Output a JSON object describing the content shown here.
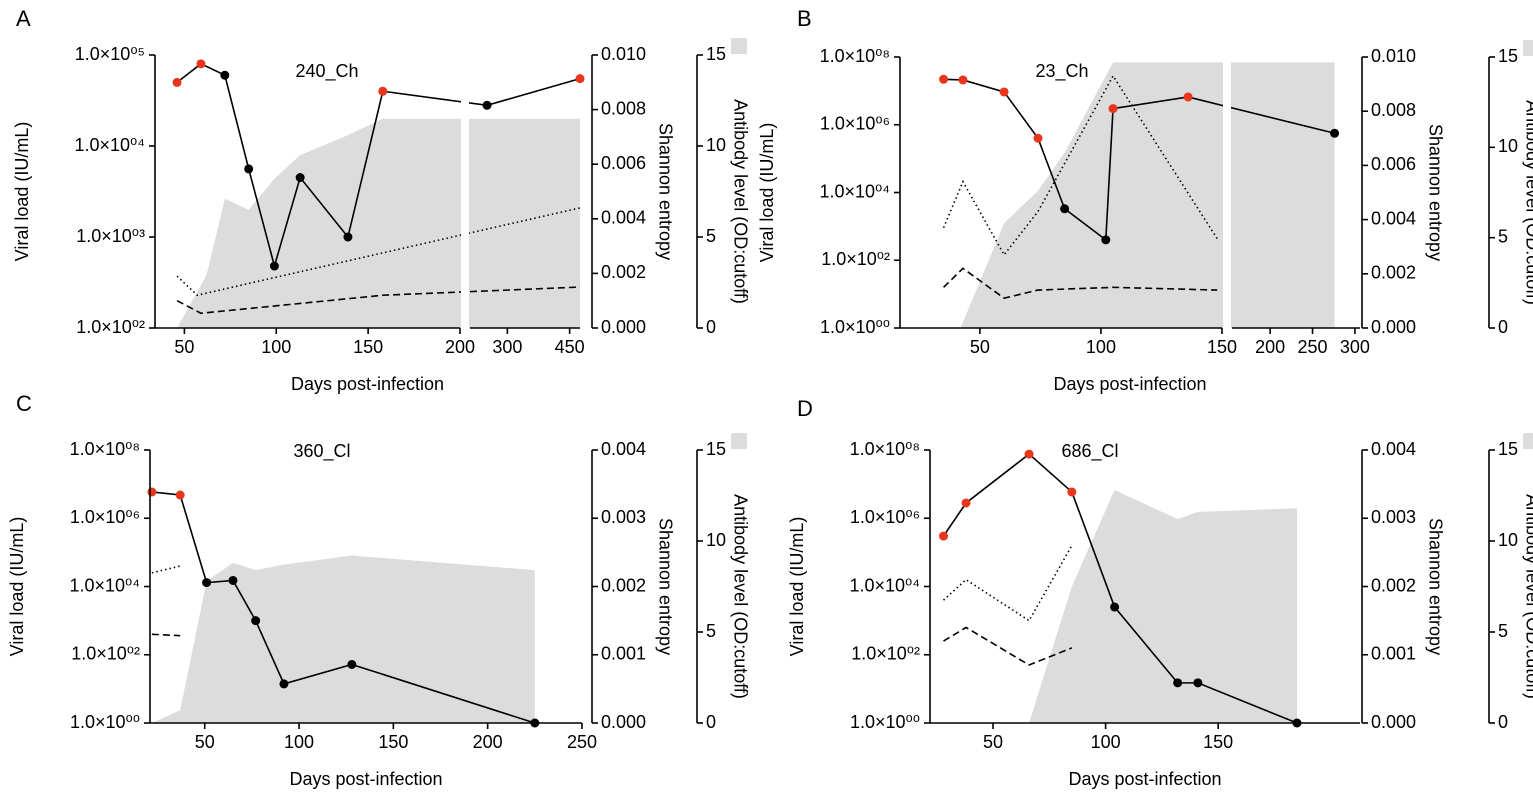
{
  "chart_data": [
    {
      "type": "line",
      "panel_label": "A",
      "title": "240_Ch",
      "x_label": "Days post-infection",
      "y_label": "Viral load (IU/mL)",
      "y2_label": "Shannon entropy",
      "y3_label": "Antibody level (OD:cutoff)",
      "x_segments": [
        {
          "xlim": [
            34,
            200
          ],
          "xticks": [
            50,
            100,
            150,
            200
          ]
        },
        {
          "xlim": [
            210,
            475
          ],
          "xticks": [
            300,
            450
          ]
        }
      ],
      "yscale": "log",
      "ylim": [
        100,
        100000
      ],
      "yticks": [
        {
          "value": 100,
          "label": "1.0×10⁰²"
        },
        {
          "value": 1000,
          "label": "1.0×10⁰³"
        },
        {
          "value": 10000,
          "label": "1.0×10⁰⁴"
        },
        {
          "value": 100000,
          "label": "1.0×10⁰⁵"
        }
      ],
      "y2lim": [
        0,
        0.01
      ],
      "y2ticks": [
        {
          "value": 0,
          "label": "0.000"
        },
        {
          "value": 0.002,
          "label": "0.002"
        },
        {
          "value": 0.004,
          "label": "0.004"
        },
        {
          "value": 0.006,
          "label": "0.006"
        },
        {
          "value": 0.008,
          "label": "0.008"
        },
        {
          "value": 0.01,
          "label": "0.010"
        }
      ],
      "y3lim": [
        0,
        15
      ],
      "y3ticks": [
        0,
        5,
        10,
        15
      ],
      "series": [
        {
          "kind": "area",
          "axis": "y3",
          "color": "#dcdcdc",
          "x": [
            46,
            62,
            72,
            85,
            99,
            113,
            139,
            158,
            475
          ],
          "values": [
            0,
            2.9,
            7.1,
            6.5,
            8.2,
            9.5,
            10.6,
            11.5,
            11.5
          ]
        },
        {
          "kind": "line",
          "axis": "y2",
          "style": "dotted",
          "color": "#000000",
          "x": [
            46,
            57,
            475
          ],
          "values": [
            0.0019,
            0.0012,
            0.0044
          ]
        },
        {
          "kind": "line",
          "axis": "y2",
          "style": "dashed",
          "color": "#000000",
          "x": [
            46,
            59,
            158,
            475
          ],
          "values": [
            0.001,
            0.00054,
            0.0012,
            0.0015
          ]
        },
        {
          "kind": "line",
          "axis": "y",
          "style": "solid",
          "color": "#000000",
          "x": [
            46,
            59,
            72,
            85,
            99,
            113,
            139,
            158,
            251,
            475
          ],
          "values": [
            50000,
            80000,
            60000,
            5600,
            480,
            4500,
            1000,
            40000,
            28000,
            55000
          ],
          "marker_colors": [
            "#e8361c",
            "#e8361c",
            "#000000",
            "#000000",
            "#000000",
            "#000000",
            "#000000",
            "#e8361c",
            "#000000",
            "#e8361c"
          ]
        }
      ]
    },
    {
      "type": "line",
      "panel_label": "B",
      "title": "23_Ch",
      "x_label": "Days post-infection",
      "y_label": "Viral load (IU/mL)",
      "y2_label": "Shannon entropy",
      "y3_label": "Antibody level (OD:cutoff)",
      "x_segments": [
        {
          "xlim": [
            17,
            150
          ],
          "xticks": [
            50,
            100,
            150
          ]
        },
        {
          "xlim": [
            155,
            306
          ],
          "xticks": [
            200,
            250,
            300
          ]
        }
      ],
      "yscale": "log",
      "ylim": [
        1,
        100000000
      ],
      "yticks": [
        {
          "value": 1,
          "label": "1.0×10⁰⁰"
        },
        {
          "value": 100,
          "label": "1.0×10⁰²"
        },
        {
          "value": 10000,
          "label": "1.0×10⁰⁴"
        },
        {
          "value": 1000000,
          "label": "1.0×10⁰⁶"
        },
        {
          "value": 100000000,
          "label": "1.0×10⁰⁸"
        }
      ],
      "y2lim": [
        0,
        0.01
      ],
      "y2ticks": [
        {
          "value": 0,
          "label": "0.000"
        },
        {
          "value": 0.002,
          "label": "0.002"
        },
        {
          "value": 0.004,
          "label": "0.004"
        },
        {
          "value": 0.006,
          "label": "0.006"
        },
        {
          "value": 0.008,
          "label": "0.008"
        },
        {
          "value": 0.01,
          "label": "0.010"
        }
      ],
      "y3lim": [
        0,
        15
      ],
      "y3ticks": [
        0,
        5,
        10,
        15
      ],
      "series": [
        {
          "kind": "area",
          "axis": "y3",
          "color": "#dcdcdc",
          "x": [
            42,
            60,
            74,
            85,
            105,
            276
          ],
          "values": [
            0,
            5.8,
            7.6,
            9.7,
            14.7,
            14.7
          ]
        },
        {
          "kind": "line",
          "axis": "y2",
          "style": "dotted",
          "color": "#000000",
          "x": [
            35,
            43,
            60,
            74,
            105,
            148
          ],
          "values": [
            0.0037,
            0.0054,
            0.0027,
            0.0043,
            0.0093,
            0.0033
          ]
        },
        {
          "kind": "line",
          "axis": "y2",
          "style": "dashed",
          "color": "#000000",
          "x": [
            35,
            43,
            60,
            74,
            105,
            148
          ],
          "values": [
            0.0015,
            0.0022,
            0.0011,
            0.0014,
            0.0015,
            0.0014
          ]
        },
        {
          "kind": "line",
          "axis": "y",
          "style": "solid",
          "color": "#000000",
          "x": [
            35,
            43,
            60,
            74,
            85,
            102,
            105,
            136,
            276
          ],
          "values": [
            22000000,
            21000000,
            9300000,
            400000,
            3300,
            400,
            3000000,
            6600000,
            560000
          ],
          "marker_colors": [
            "#e8361c",
            "#e8361c",
            "#e8361c",
            "#e8361c",
            "#000000",
            "#000000",
            "#e8361c",
            "#e8361c",
            "#000000"
          ]
        }
      ]
    },
    {
      "type": "line",
      "panel_label": "C",
      "title": "360_Cl",
      "x_label": "Days post-infection",
      "y_label": "Viral load (IU/mL)",
      "y2_label": "Shannon entropy",
      "y3_label": "Antibody level (OD:cutoff)",
      "x_segments": [
        {
          "xlim": [
            21,
            250
          ],
          "xticks": [
            50,
            100,
            150,
            200,
            250
          ]
        }
      ],
      "yscale": "log",
      "ylim": [
        1,
        100000000
      ],
      "yticks": [
        {
          "value": 1,
          "label": "1.0×10⁰⁰"
        },
        {
          "value": 100,
          "label": "1.0×10⁰²"
        },
        {
          "value": 10000,
          "label": "1.0×10⁰⁴"
        },
        {
          "value": 1000000,
          "label": "1.0×10⁰⁶"
        },
        {
          "value": 100000000,
          "label": "1.0×10⁰⁸"
        }
      ],
      "y2lim": [
        0,
        0.004
      ],
      "y2ticks": [
        {
          "value": 0,
          "label": "0.000"
        },
        {
          "value": 0.001,
          "label": "0.001"
        },
        {
          "value": 0.002,
          "label": "0.002"
        },
        {
          "value": 0.003,
          "label": "0.003"
        },
        {
          "value": 0.004,
          "label": "0.004"
        }
      ],
      "y3lim": [
        0,
        15
      ],
      "y3ticks": [
        0,
        5,
        10,
        15
      ],
      "series": [
        {
          "kind": "area",
          "axis": "y3",
          "color": "#dcdcdc",
          "x": [
            22,
            37,
            51,
            65,
            77,
            92,
            128,
            225
          ],
          "values": [
            0,
            0.7,
            7.8,
            8.8,
            8.4,
            8.7,
            9.2,
            8.4
          ]
        },
        {
          "kind": "line",
          "axis": "y2",
          "style": "dotted",
          "color": "#000000",
          "x": [
            22,
            37
          ],
          "values": [
            0.0022,
            0.0023
          ]
        },
        {
          "kind": "line",
          "axis": "y2",
          "style": "dashed",
          "color": "#000000",
          "x": [
            22,
            37
          ],
          "values": [
            0.0013,
            0.00128
          ]
        },
        {
          "kind": "line",
          "axis": "y",
          "style": "solid",
          "color": "#000000",
          "x": [
            22,
            37,
            51,
            65,
            77,
            92,
            128,
            225
          ],
          "values": [
            5900000,
            4800000,
            13000,
            15000,
            1000,
            14,
            52,
            1
          ],
          "marker_colors": [
            "#e8361c",
            "#e8361c",
            "#000000",
            "#000000",
            "#000000",
            "#000000",
            "#000000",
            "#000000"
          ]
        }
      ]
    },
    {
      "type": "line",
      "panel_label": "D",
      "title": "686_Cl",
      "x_label": "Days post-infection",
      "y_label": "Viral load (IU/mL)",
      "y2_label": "Shannon entropy",
      "y3_label": "Antibody level (OD:cutoff)",
      "x_segments": [
        {
          "xlim": [
            22,
            213
          ],
          "xticks": [
            50,
            100,
            150
          ]
        }
      ],
      "yscale": "log",
      "ylim": [
        1,
        100000000
      ],
      "yticks": [
        {
          "value": 1,
          "label": "1.0×10⁰⁰"
        },
        {
          "value": 100,
          "label": "1.0×10⁰²"
        },
        {
          "value": 10000,
          "label": "1.0×10⁰⁴"
        },
        {
          "value": 1000000,
          "label": "1.0×10⁰⁶"
        },
        {
          "value": 100000000,
          "label": "1.0×10⁰⁸"
        }
      ],
      "y2lim": [
        0,
        0.004
      ],
      "y2ticks": [
        {
          "value": 0,
          "label": "0.000"
        },
        {
          "value": 0.001,
          "label": "0.001"
        },
        {
          "value": 0.002,
          "label": "0.002"
        },
        {
          "value": 0.003,
          "label": "0.003"
        },
        {
          "value": 0.004,
          "label": "0.004"
        }
      ],
      "y3lim": [
        0,
        15
      ],
      "y3ticks": [
        0,
        5,
        10,
        15
      ],
      "series": [
        {
          "kind": "area",
          "axis": "y3",
          "color": "#dcdcdc",
          "x": [
            66,
            85,
            104,
            132,
            141,
            185
          ],
          "values": [
            0,
            7.5,
            12.8,
            11.2,
            11.6,
            11.8
          ]
        },
        {
          "kind": "line",
          "axis": "y2",
          "style": "dotted",
          "color": "#000000",
          "x": [
            28,
            38,
            66,
            85
          ],
          "values": [
            0.0018,
            0.0021,
            0.0015,
            0.0026
          ]
        },
        {
          "kind": "line",
          "axis": "y2",
          "style": "dashed",
          "color": "#000000",
          "x": [
            28,
            38,
            66,
            85
          ],
          "values": [
            0.0012,
            0.0014,
            0.00085,
            0.0011
          ]
        },
        {
          "kind": "line",
          "axis": "y",
          "style": "solid",
          "color": "#000000",
          "x": [
            28,
            38,
            66,
            85,
            104,
            132,
            141,
            185
          ],
          "values": [
            300000,
            2800000,
            76000000,
            5900000,
            2500,
            15,
            15,
            1
          ],
          "marker_colors": [
            "#e8361c",
            "#e8361c",
            "#e8361c",
            "#e8361c",
            "#000000",
            "#000000",
            "#000000",
            "#000000"
          ]
        }
      ]
    }
  ]
}
